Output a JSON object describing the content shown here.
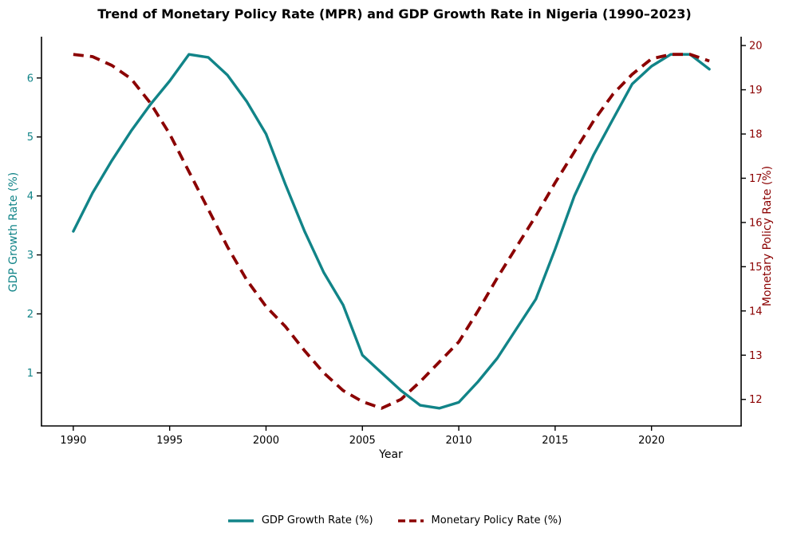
{
  "title": "Trend of Monetary Policy Rate (MPR) and GDP Growth Rate in Nigeria (1990–2023)",
  "colors": {
    "gdp_line": "#118488",
    "mpr_line": "#8B0000",
    "left_axis_text": "#118488",
    "right_axis_text": "#8B0000",
    "x_axis_text": "#000000",
    "spine": "#000000",
    "background": "#ffffff"
  },
  "chart_data": {
    "type": "line",
    "title": "Trend of Monetary Policy Rate (MPR) and GDP Growth Rate in Nigeria (1990–2023)",
    "xlabel": "Year",
    "ylabel_left": "GDP Growth Rate (%)",
    "ylabel_right": "Monetary Policy Rate (%)",
    "x": [
      1990,
      1991,
      1992,
      1993,
      1994,
      1995,
      1996,
      1997,
      1998,
      1999,
      2000,
      2001,
      2002,
      2003,
      2004,
      2005,
      2006,
      2007,
      2008,
      2009,
      2010,
      2011,
      2012,
      2013,
      2014,
      2015,
      2016,
      2017,
      2018,
      2019,
      2020,
      2021,
      2022,
      2023
    ],
    "series": [
      {
        "name": "GDP Growth Rate (%)",
        "axis": "left",
        "color": "#118488",
        "style": "solid",
        "line_width": 3.4,
        "values": [
          3.4,
          4.05,
          4.6,
          5.1,
          5.55,
          5.95,
          6.4,
          6.35,
          6.05,
          5.6,
          5.05,
          4.2,
          3.4,
          2.7,
          2.15,
          1.3,
          1.0,
          0.7,
          0.45,
          0.4,
          0.5,
          0.85,
          1.25,
          1.75,
          2.25,
          3.1,
          4.0,
          4.7,
          5.3,
          5.9,
          6.2,
          6.4,
          6.4,
          6.15
        ]
      },
      {
        "name": "Monetary Policy Rate (%)",
        "axis": "right",
        "color": "#8B0000",
        "style": "dashed",
        "line_width": 3.8,
        "values": [
          19.8,
          19.75,
          19.55,
          19.25,
          18.7,
          18.0,
          17.15,
          16.3,
          15.45,
          14.7,
          14.1,
          13.65,
          13.1,
          12.6,
          12.2,
          11.95,
          11.8,
          12.0,
          12.4,
          12.85,
          13.3,
          14.0,
          14.75,
          15.45,
          16.15,
          16.9,
          17.6,
          18.3,
          18.9,
          19.35,
          19.7,
          19.8,
          19.8,
          19.65
        ]
      }
    ],
    "x_ticks": [
      1990,
      1995,
      2000,
      2005,
      2010,
      2015,
      2020
    ],
    "y_ticks_left": [
      1,
      2,
      3,
      4,
      5,
      6
    ],
    "y_ticks_right": [
      12,
      13,
      14,
      15,
      16,
      17,
      18,
      19,
      20
    ],
    "xlim": [
      1988.35,
      2024.65
    ],
    "ylim_left": [
      0.1,
      6.7
    ],
    "ylim_right": [
      11.4,
      20.2
    ],
    "grid": false,
    "legend_position": "bottom-center"
  }
}
